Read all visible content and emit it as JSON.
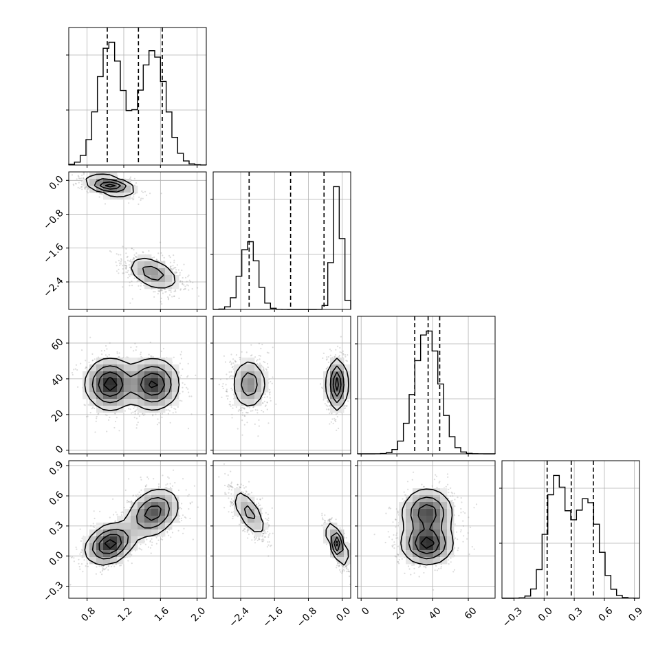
{
  "chart_data": {
    "type": "corner",
    "params": [
      {
        "range": [
          0.6,
          2.1
        ],
        "ticks": [
          "0.8",
          "1.2",
          "1.6",
          "2.0"
        ],
        "tickvals": [
          0.8,
          1.2,
          1.6,
          2.0
        ],
        "quantiles": [
          1.02,
          1.36,
          1.62
        ]
      },
      {
        "range": [
          -3.05,
          0.2
        ],
        "ticks": [
          "−2.4",
          "−1.6",
          "−0.8",
          "0.0"
        ],
        "tickvals": [
          -2.4,
          -1.6,
          -0.8,
          0.0
        ],
        "quantiles": [
          -2.2,
          -1.22,
          -0.43
        ]
      },
      {
        "range": [
          -2,
          75
        ],
        "ticks": [
          "0",
          "20",
          "40",
          "60"
        ],
        "tickvals": [
          0,
          20,
          40,
          60
        ],
        "quantiles": [
          30,
          37.5,
          44
        ]
      },
      {
        "range": [
          -0.42,
          0.95
        ],
        "ticks": [
          "−0.3",
          "0.0",
          "0.3",
          "0.6",
          "0.9"
        ],
        "tickvals": [
          -0.3,
          0.0,
          0.3,
          0.6,
          0.9
        ],
        "quantiles": [
          0.03,
          0.27,
          0.49
        ]
      }
    ],
    "modes": [
      {
        "weight": 0.5,
        "mean": [
          1.05,
          -0.12,
          37,
          0.12
        ],
        "sd": [
          0.13,
          0.11,
          7,
          0.1
        ]
      },
      {
        "weight": 0.5,
        "mean": [
          1.52,
          -2.2,
          37,
          0.43
        ],
        "sd": [
          0.14,
          0.2,
          7,
          0.12
        ]
      }
    ],
    "pair_correlations": {
      "0-1": -0.45,
      "0-2": 0.0,
      "0-3": 0.3,
      "1-2": 0.0,
      "1-3": -0.7,
      "2-3": 0.0
    },
    "grid": true,
    "quantile_style": "dashed"
  }
}
